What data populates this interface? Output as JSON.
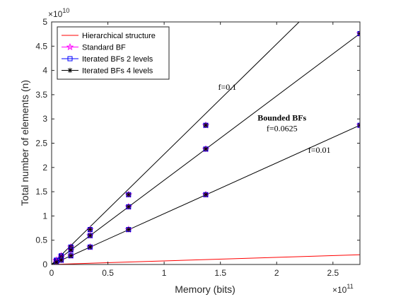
{
  "chart_data": {
    "type": "line",
    "xlabel": "Memory (bits)",
    "ylabel": "Total number of elements (n)",
    "x_exponent": "×10",
    "x_exponent_power": "11",
    "y_exponent": "×10",
    "y_exponent_power": "10",
    "xlim": [
      0,
      2.74
    ],
    "ylim": [
      0,
      5
    ],
    "xticks": [
      0,
      0.5,
      1,
      1.5,
      2,
      2.5
    ],
    "xtick_labels": [
      "0",
      "0.5",
      "1",
      "1.5",
      "2",
      "2.5"
    ],
    "yticks": [
      0,
      0.5,
      1,
      1.5,
      2,
      2.5,
      3,
      3.5,
      4,
      4.5,
      5
    ],
    "ytick_labels": [
      "0",
      "0.5",
      "1",
      "1.5",
      "2",
      "2.5",
      "3",
      "3.5",
      "4",
      "4.5",
      "5"
    ],
    "grid": false,
    "legend_position": "top-left",
    "legend": [
      {
        "label": "Hierarchical structure",
        "color": "#ff0000",
        "marker": "none"
      },
      {
        "label": "Standard BF",
        "color": "#ff00ff",
        "marker": "star"
      },
      {
        "label": "Iterated BFs 2 levels",
        "color": "#0000ff",
        "marker": "square"
      },
      {
        "label": "Iterated BFs 4 levels",
        "color": "#000000",
        "marker": "asterisk"
      }
    ],
    "bounded_lines": [
      {
        "label": "f=0.1",
        "x": [
          0,
          2.2
        ],
        "y": [
          0,
          5.0
        ]
      },
      {
        "label": "f=0.0625",
        "x": [
          0,
          2.74
        ],
        "y": [
          0,
          4.76
        ]
      },
      {
        "label": "f=0.01",
        "x": [
          0,
          2.74
        ],
        "y": [
          0,
          2.87
        ]
      }
    ],
    "marker_series": [
      {
        "name": "f=0.1",
        "x": [
          0.0427,
          0.0855,
          0.171,
          0.342,
          0.684,
          1.37
        ],
        "y": [
          0.09,
          0.18,
          0.36,
          0.72,
          1.44,
          2.87
        ]
      },
      {
        "name": "f=0.0625",
        "x": [
          0.0427,
          0.0855,
          0.171,
          0.342,
          0.684,
          1.37,
          2.74
        ],
        "y": [
          0.074,
          0.149,
          0.298,
          0.596,
          1.19,
          2.38,
          4.76
        ]
      },
      {
        "name": "f=0.01",
        "x": [
          0.0427,
          0.0855,
          0.171,
          0.342,
          0.684,
          1.37,
          2.74
        ],
        "y": [
          0.045,
          0.09,
          0.18,
          0.36,
          0.72,
          1.44,
          2.87
        ]
      }
    ],
    "hierarchical": {
      "x": [
        0,
        2.74
      ],
      "y": [
        0,
        0.2
      ]
    },
    "annotations": [
      {
        "text": "f=0.1",
        "x": 1.48,
        "y": 3.6,
        "bold": false
      },
      {
        "text": "Bounded BFs",
        "x": 1.83,
        "y": 2.97,
        "bold": true
      },
      {
        "text": "f=0.0625",
        "x": 1.91,
        "y": 2.75,
        "bold": false
      },
      {
        "text": "f=0.01",
        "x": 2.28,
        "y": 2.3,
        "bold": false
      }
    ]
  }
}
